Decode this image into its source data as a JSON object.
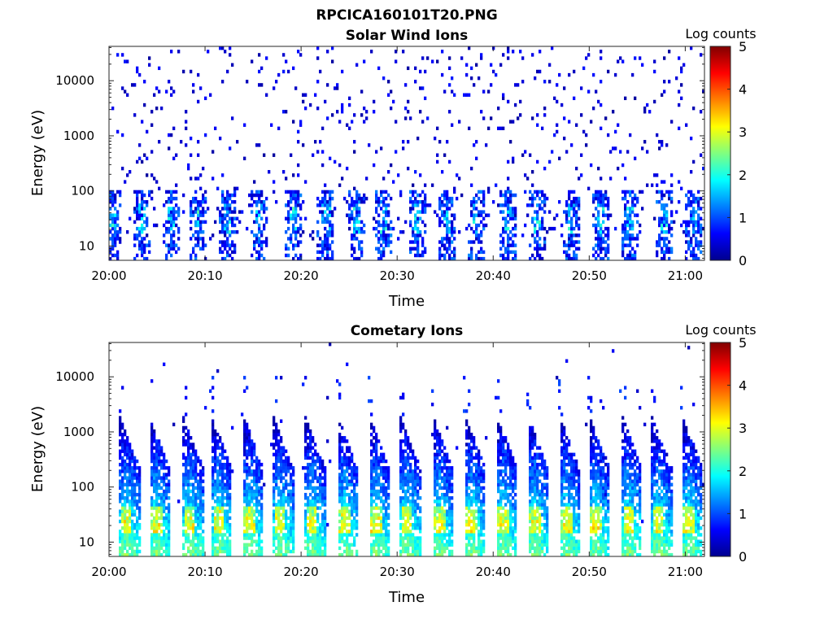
{
  "figure_title": "RPCICA160101T20.PNG",
  "chart_data": [
    {
      "type": "heatmap",
      "title": "Solar Wind Ions",
      "xlabel": "Time",
      "ylabel": "Energy (eV)",
      "y_scale": "log",
      "ylim": [
        5.5,
        42000
      ],
      "xlim": [
        "20:00",
        "21:02"
      ],
      "x_ticks": [
        "20:00",
        "20:10",
        "20:20",
        "20:30",
        "20:40",
        "20:50",
        "21:00"
      ],
      "y_ticks": [
        "10",
        "100",
        "1000",
        "10000"
      ],
      "colorbar": {
        "label": "Log counts",
        "min": 0,
        "max": 5,
        "ticks": [
          "0",
          "1",
          "2",
          "3",
          "4",
          "5"
        ],
        "colormap": "jet"
      },
      "pulses_minutes": [
        0.4,
        3.4,
        6.4,
        9.3,
        12.3,
        15.7,
        19.2,
        22.6,
        25.7,
        28.5,
        32.1,
        35.1,
        38.3,
        41.5,
        44.7,
        48.2,
        51.3,
        54.3,
        57.7,
        60.9
      ],
      "dominant_energy_eV": [
        25,
        45
      ],
      "typical_level": "0-2 (sparse background 10-30000 eV, bursts near 20-80 eV)"
    },
    {
      "type": "heatmap",
      "title": "Cometary Ions",
      "xlabel": "Time",
      "ylabel": "Energy (eV)",
      "y_scale": "log",
      "ylim": [
        5.5,
        42000
      ],
      "xlim": [
        "20:00",
        "21:02"
      ],
      "x_ticks": [
        "20:00",
        "20:10",
        "20:20",
        "20:30",
        "20:40",
        "20:50",
        "21:00"
      ],
      "y_ticks": [
        "10",
        "100",
        "1000",
        "10000"
      ],
      "colorbar": {
        "label": "Log counts",
        "min": 0,
        "max": 5,
        "ticks": [
          "0",
          "1",
          "2",
          "3",
          "4",
          "5"
        ],
        "colormap": "jet"
      },
      "pulses_minutes": [
        1.8,
        4.9,
        8.4,
        11.4,
        14.7,
        17.8,
        21.1,
        24.5,
        27.8,
        31.0,
        34.4,
        37.8,
        41.1,
        44.3,
        47.6,
        50.7,
        54.1,
        57.2,
        60.4
      ],
      "dominant_energy_eV": [
        15,
        45
      ],
      "typical_level": "1-3.5 (plumes up to ~1500 eV, peaks near 20-40 eV)"
    }
  ]
}
